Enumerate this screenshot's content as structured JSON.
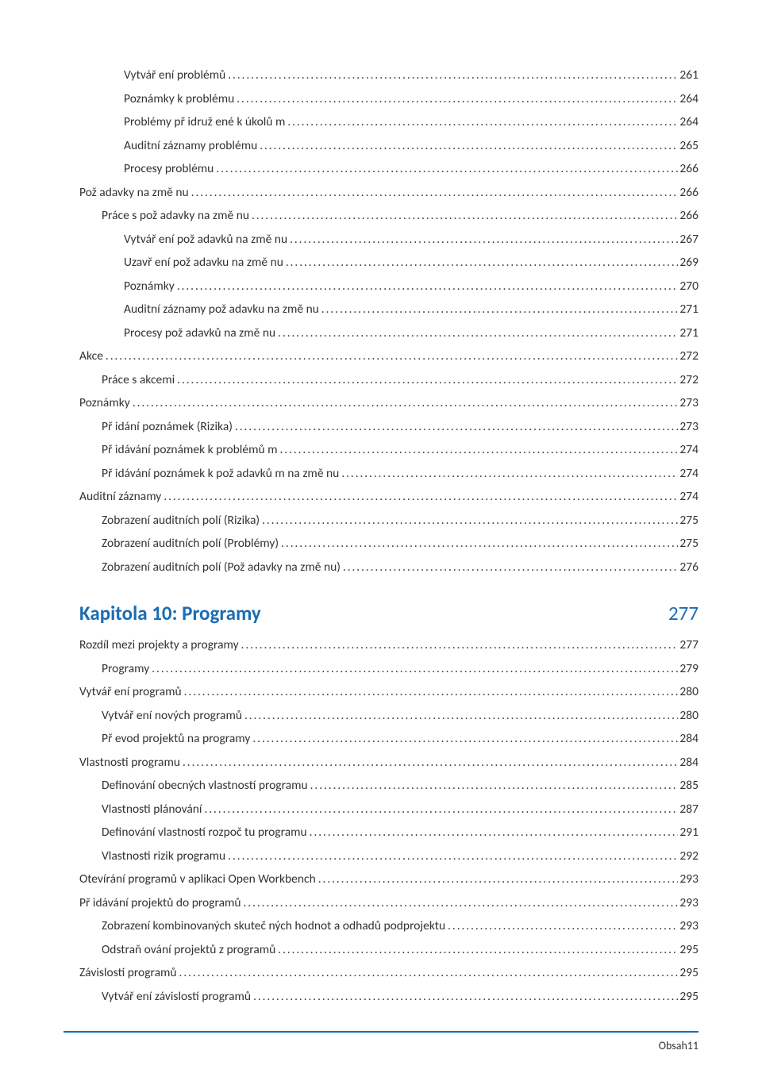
{
  "colors": {
    "chapter": "#1a6db3",
    "footer_line": "#1a6db3",
    "text": "#333333"
  },
  "toc_block_1": [
    {
      "indent": 2,
      "label": "Vytvář ení problémů",
      "page": "261"
    },
    {
      "indent": 2,
      "label": "Poznámky k problému",
      "page": "264"
    },
    {
      "indent": 2,
      "label": "Problémy př idruž ené k úkolů m",
      "page": "264"
    },
    {
      "indent": 2,
      "label": "Auditní záznamy problému",
      "page": "265"
    },
    {
      "indent": 2,
      "label": "Procesy problému",
      "page": "266"
    },
    {
      "indent": 0,
      "label": "Pož adavky na změ nu",
      "page": "266"
    },
    {
      "indent": 1,
      "label": "Práce s pož adavky na změ nu",
      "page": "266"
    },
    {
      "indent": 2,
      "label": "Vytvář ení pož adavků  na změ nu",
      "page": "267"
    },
    {
      "indent": 2,
      "label": "Uzavř ení pož adavku na změ nu",
      "page": "269"
    },
    {
      "indent": 2,
      "label": "Poznámky",
      "page": "270"
    },
    {
      "indent": 2,
      "label": "Auditní záznamy pož adavku na změ nu",
      "page": "271"
    },
    {
      "indent": 2,
      "label": "Procesy pož adavků  na změ nu",
      "page": "271"
    },
    {
      "indent": 0,
      "label": "Akce",
      "page": "272"
    },
    {
      "indent": 1,
      "label": "Práce s akcemi",
      "page": "272"
    },
    {
      "indent": 0,
      "label": "Poznámky",
      "page": "273"
    },
    {
      "indent": 1,
      "label": "Př idání poznámek (Rizika)",
      "page": "273"
    },
    {
      "indent": 1,
      "label": "Př idávání poznámek k problémů m",
      "page": "274"
    },
    {
      "indent": 1,
      "label": "Př idávání poznámek k pož adavků m na změ nu",
      "page": "274"
    },
    {
      "indent": 0,
      "label": "Auditní záznamy",
      "page": "274"
    },
    {
      "indent": 1,
      "label": "Zobrazení auditních polí (Rizika)",
      "page": "275"
    },
    {
      "indent": 1,
      "label": "Zobrazení auditních polí (Problémy)",
      "page": "275"
    },
    {
      "indent": 1,
      "label": "Zobrazení auditních polí (Pož adavky na změ nu)",
      "page": "276"
    }
  ],
  "chapter": {
    "title": "Kapitola 10: Programy",
    "page": "277"
  },
  "toc_block_2": [
    {
      "indent": 0,
      "label": "Rozdíl mezi projekty a programy",
      "page": "277"
    },
    {
      "indent": 1,
      "label": "Programy",
      "page": "279"
    },
    {
      "indent": 0,
      "label": "Vytvář ení programů",
      "page": "280"
    },
    {
      "indent": 1,
      "label": "Vytvář ení nových programů",
      "page": "280"
    },
    {
      "indent": 1,
      "label": "Př evod projektů  na programy",
      "page": "284"
    },
    {
      "indent": 0,
      "label": "Vlastnosti programu",
      "page": "284"
    },
    {
      "indent": 1,
      "label": "Definování obecných vlastností programu",
      "page": "285"
    },
    {
      "indent": 1,
      "label": "Vlastnosti plánování",
      "page": "287"
    },
    {
      "indent": 1,
      "label": "Definování vlastností rozpoč tu programu",
      "page": "291"
    },
    {
      "indent": 1,
      "label": "Vlastnosti rizik programu",
      "page": "292"
    },
    {
      "indent": 0,
      "label": "Otevírání programů  v aplikaci Open Workbench",
      "page": "293"
    },
    {
      "indent": 0,
      "label": "Př idávání projektů  do programů",
      "page": "293"
    },
    {
      "indent": 1,
      "label": "Zobrazení kombinovaných skuteč ných hodnot a odhadů  podprojektu",
      "page": "293"
    },
    {
      "indent": 1,
      "label": "Odstraň ování projektů  z programů",
      "page": "295"
    },
    {
      "indent": 0,
      "label": "Závislosti programů",
      "page": "295"
    },
    {
      "indent": 1,
      "label": "Vytvář ení závislostí programů",
      "page": "295"
    }
  ],
  "footer": "Obsah11"
}
